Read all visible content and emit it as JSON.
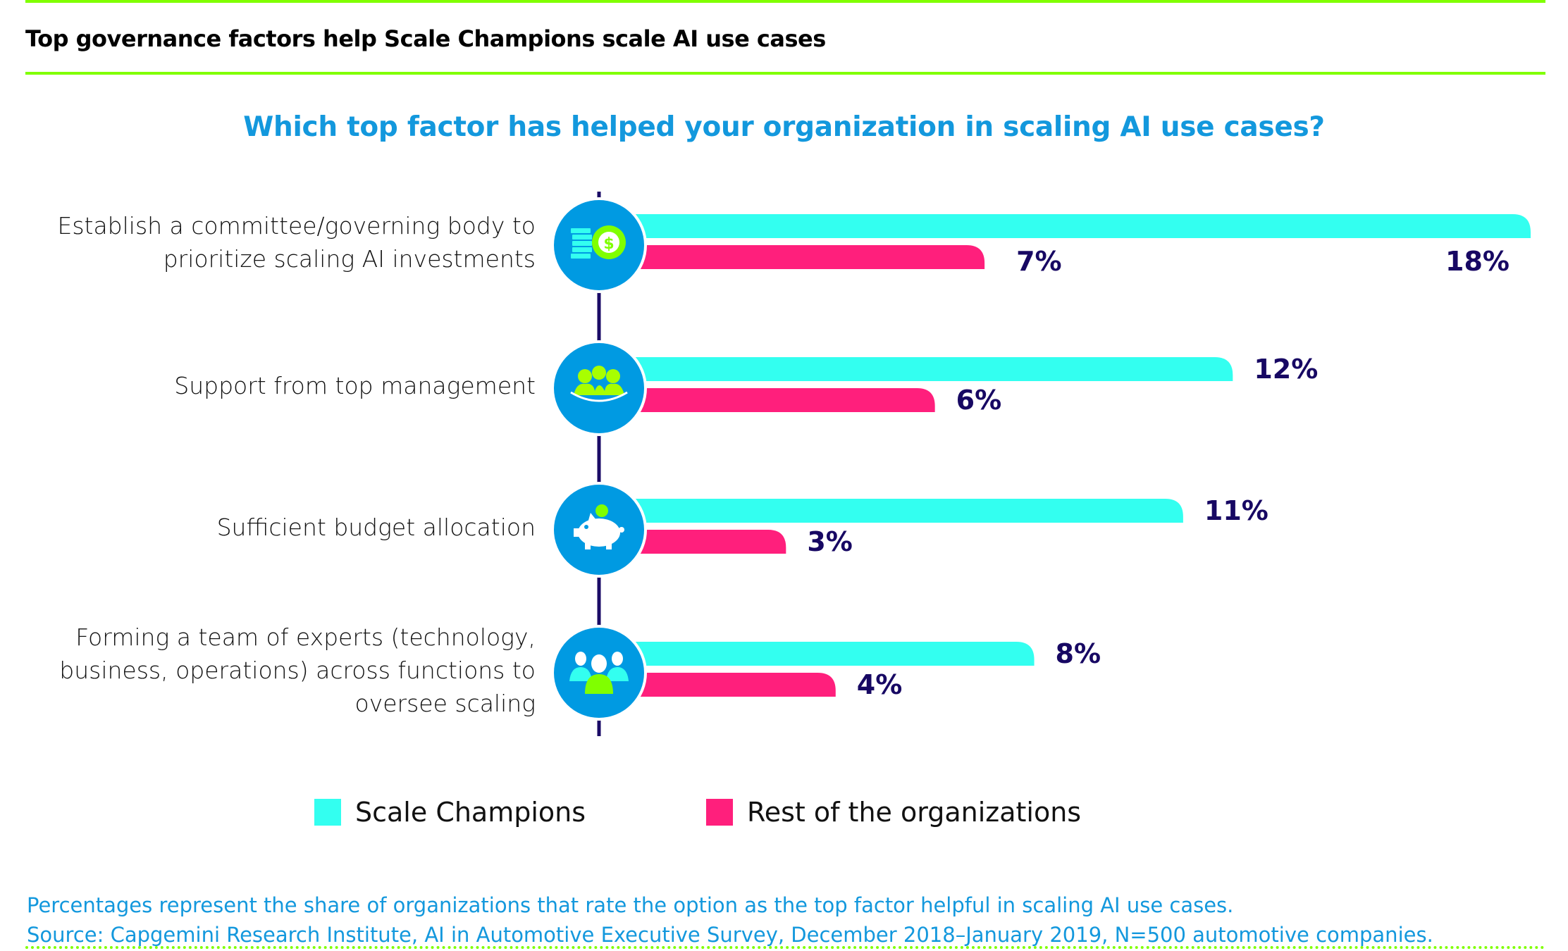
{
  "header": {
    "title": "Top governance factors help Scale Champions scale AI use cases"
  },
  "chart_data": {
    "type": "bar",
    "orientation": "horizontal",
    "title": "Which top factor has helped your organization in scaling AI use cases?",
    "categories": [
      "Establish a committee/governing body to prioritize scaling AI investments",
      "Support from top management",
      "Sufficient budget allocation",
      "Forming a team of experts (technology, business, operations) across functions to oversee scaling"
    ],
    "category_lines": [
      [
        "Establish a committee/governing body to",
        "prioritize scaling AI investments"
      ],
      [
        "Support from top management"
      ],
      [
        "Sufficient budget allocation"
      ],
      [
        "Forming a team of experts (technology,",
        "business, operations) across functions to",
        "oversee scaling"
      ]
    ],
    "category_icons": [
      "money-coins-icon",
      "management-team-icon",
      "piggy-bank-icon",
      "expert-team-icon"
    ],
    "series": [
      {
        "name": "Scale Champions",
        "color": "#33fff0",
        "values": [
          18,
          12,
          11,
          8
        ]
      },
      {
        "name": "Rest of the organizations",
        "color": "#ff1f7c",
        "values": [
          7,
          6,
          3,
          4
        ]
      }
    ],
    "value_suffix": "%",
    "xlim": [
      0,
      18
    ],
    "xlabel": "",
    "ylabel": "",
    "grid": false,
    "legend_position": "bottom",
    "colors": {
      "axis": "#1a0a66",
      "icon_circle": "#009ae2",
      "value_label": "#170863",
      "accent_green": "#80ff00"
    }
  },
  "legend": {
    "items": [
      {
        "label": "Scale Champions",
        "color": "#33fff0"
      },
      {
        "label": "Rest of the organizations",
        "color": "#ff1f7c"
      }
    ]
  },
  "footer": {
    "note": "Percentages represent the share of organizations that rate the option as the top factor helpful in scaling AI use cases.",
    "source": "Source: Capgemini Research Institute, AI in Automotive Executive Survey, December 2018–January 2019, N=500 automotive companies."
  }
}
